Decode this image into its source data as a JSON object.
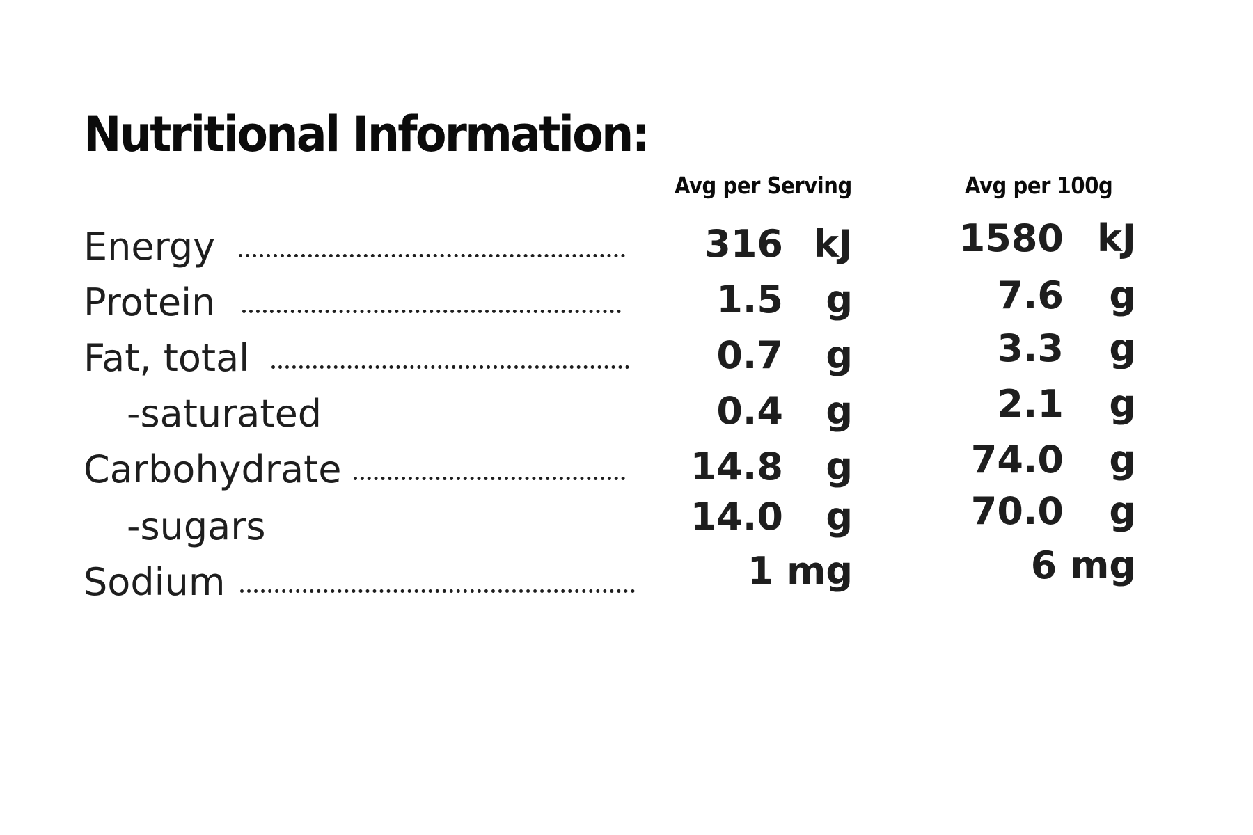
{
  "title": "Nutritional Information:",
  "columns": {
    "serving": "Avg per Serving",
    "per100": "Avg per 100g"
  },
  "rows": [
    {
      "label": "Energy",
      "serving": "316",
      "serving_unit": "kJ",
      "per100": "1580",
      "per100_unit": "kJ"
    },
    {
      "label": "Protein",
      "serving": "1.5",
      "serving_unit": "g",
      "per100": "7.6",
      "per100_unit": "g"
    },
    {
      "label": "Fat, total",
      "serving": "0.7",
      "serving_unit": "g",
      "per100": "3.3",
      "per100_unit": "g"
    },
    {
      "label": "-saturated",
      "serving": "0.4",
      "serving_unit": "g",
      "per100": "2.1",
      "per100_unit": "g"
    },
    {
      "label": "Carbohydrate",
      "serving": "14.8",
      "serving_unit": "g",
      "per100": "74.0",
      "per100_unit": "g"
    },
    {
      "label": "-sugars",
      "serving": "14.0",
      "serving_unit": "g",
      "per100": "70.0",
      "per100_unit": "g"
    },
    {
      "label": "Sodium",
      "serving": "1 mg",
      "per100": "6 mg"
    }
  ]
}
